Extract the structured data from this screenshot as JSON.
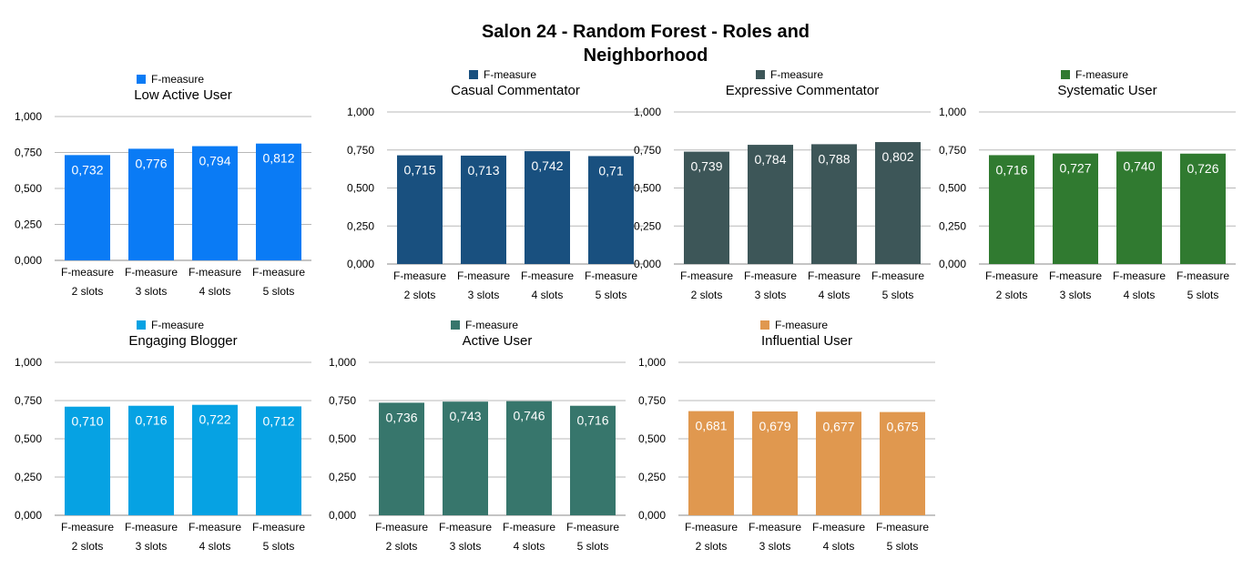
{
  "title_lines": [
    "Salon 24 - Random Forest - Roles and",
    "Neighborhood"
  ],
  "chart_data": [
    {
      "type": "bar",
      "title": "Low Active User",
      "legend": "F-measure",
      "color": "#0a7bf5",
      "categories": [
        [
          "F-measure",
          "2 slots"
        ],
        [
          "F-measure",
          "3 slots"
        ],
        [
          "F-measure",
          "4 slots"
        ],
        [
          "F-measure",
          "5 slots"
        ]
      ],
      "values": [
        0.732,
        0.776,
        0.794,
        0.812
      ],
      "labels": [
        "0,732",
        "0,776",
        "0,794",
        "0,812"
      ],
      "ylim": [
        0,
        1
      ],
      "yticks": [
        "0,000",
        "0,250",
        "0,500",
        "0,750",
        "1,000"
      ],
      "grid": true,
      "legend_position": "top"
    },
    {
      "type": "bar",
      "title": "Casual Commentator",
      "legend": "F-measure",
      "color": "#19507f",
      "categories": [
        [
          "F-measure",
          "2 slots"
        ],
        [
          "F-measure",
          "3 slots"
        ],
        [
          "F-measure",
          "4 slots"
        ],
        [
          "F-measure",
          "5 slots"
        ]
      ],
      "values": [
        0.715,
        0.713,
        0.742,
        0.71
      ],
      "labels": [
        "0,715",
        "0,713",
        "0,742",
        "0,71"
      ],
      "ylim": [
        0,
        1
      ],
      "yticks": [
        "0,000",
        "0,250",
        "0,500",
        "0,750",
        "1,000"
      ],
      "grid": true,
      "legend_position": "top"
    },
    {
      "type": "bar",
      "title": "Expressive Commentator",
      "legend": "F-measure",
      "color": "#3d5658",
      "categories": [
        [
          "F-measure",
          "2 slots"
        ],
        [
          "F-measure",
          "3 slots"
        ],
        [
          "F-measure",
          "4 slots"
        ],
        [
          "F-measure",
          "5 slots"
        ]
      ],
      "values": [
        0.739,
        0.784,
        0.788,
        0.802
      ],
      "labels": [
        "0,739",
        "0,784",
        "0,788",
        "0,802"
      ],
      "ylim": [
        0,
        1
      ],
      "yticks": [
        "0,000",
        "0,250",
        "0,500",
        "0,750",
        "1,000"
      ],
      "grid": true,
      "legend_position": "top"
    },
    {
      "type": "bar",
      "title": "Systematic User",
      "legend": "F-measure",
      "color": "#307a30",
      "categories": [
        [
          "F-measure",
          "2 slots"
        ],
        [
          "F-measure",
          "3 slots"
        ],
        [
          "F-measure",
          "4 slots"
        ],
        [
          "F-measure",
          "5 slots"
        ]
      ],
      "values": [
        0.716,
        0.727,
        0.74,
        0.726
      ],
      "labels": [
        "0,716",
        "0,727",
        "0,740",
        "0,726"
      ],
      "ylim": [
        0,
        1
      ],
      "yticks": [
        "0,000",
        "0,250",
        "0,500",
        "0,750",
        "1,000"
      ],
      "grid": true,
      "legend_position": "top"
    },
    {
      "type": "bar",
      "title": "Engaging Blogger",
      "legend": "F-measure",
      "color": "#06a2e3",
      "categories": [
        [
          "F-measure",
          "2 slots"
        ],
        [
          "F-measure",
          "3 slots"
        ],
        [
          "F-measure",
          "4 slots"
        ],
        [
          "F-measure",
          "5 slots"
        ]
      ],
      "values": [
        0.71,
        0.716,
        0.722,
        0.712
      ],
      "labels": [
        "0,710",
        "0,716",
        "0,722",
        "0,712"
      ],
      "ylim": [
        0,
        1
      ],
      "yticks": [
        "0,000",
        "0,250",
        "0,500",
        "0,750",
        "1,000"
      ],
      "grid": true,
      "legend_position": "top"
    },
    {
      "type": "bar",
      "title": "Active User",
      "legend": "F-measure",
      "color": "#37766c",
      "categories": [
        [
          "F-measure",
          "2 slots"
        ],
        [
          "F-measure",
          "3 slots"
        ],
        [
          "F-measure",
          "4 slots"
        ],
        [
          "F-measure",
          "5 slots"
        ]
      ],
      "values": [
        0.736,
        0.743,
        0.746,
        0.716
      ],
      "labels": [
        "0,736",
        "0,743",
        "0,746",
        "0,716"
      ],
      "ylim": [
        0,
        1
      ],
      "yticks": [
        "0,000",
        "0,250",
        "0,500",
        "0,750",
        "1,000"
      ],
      "grid": true,
      "legend_position": "top"
    },
    {
      "type": "bar",
      "title": "Influential User",
      "legend": "F-measure",
      "color": "#e0984f",
      "categories": [
        [
          "F-measure",
          "2 slots"
        ],
        [
          "F-measure",
          "3 slots"
        ],
        [
          "F-measure",
          "4 slots"
        ],
        [
          "F-measure",
          "5 slots"
        ]
      ],
      "values": [
        0.681,
        0.679,
        0.677,
        0.675
      ],
      "labels": [
        "0,681",
        "0,679",
        "0,677",
        "0,675"
      ],
      "ylim": [
        0,
        1
      ],
      "yticks": [
        "0,000",
        "0,250",
        "0,500",
        "0,750",
        "1,000"
      ],
      "grid": true,
      "legend_position": "top"
    }
  ]
}
